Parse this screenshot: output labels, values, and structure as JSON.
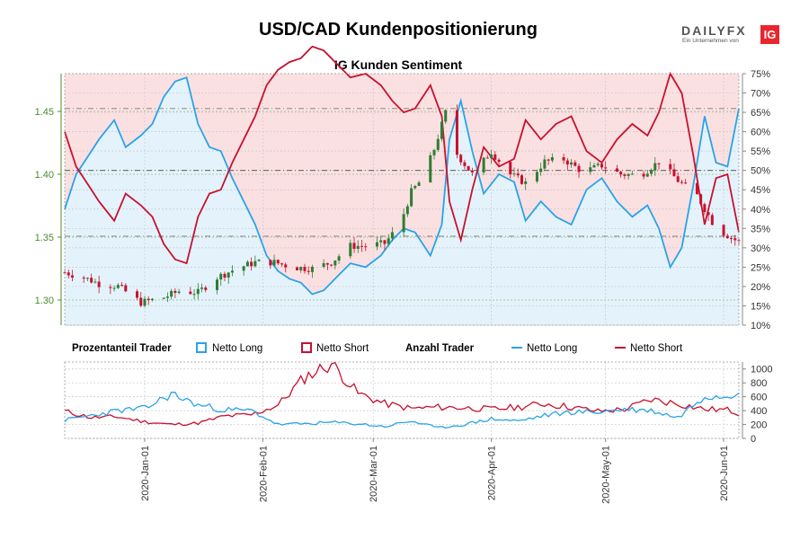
{
  "header": {
    "title": "USD/CAD Kundenpositionierung",
    "subtitle": "IG Kunden Sentiment"
  },
  "logo": {
    "brand_a": "DAILY",
    "brand_b": "FX",
    "tagline": "Ein Unternehmen von",
    "ig": "IG"
  },
  "colors": {
    "long": "#29a3e8",
    "short": "#c8102e",
    "candle_up": "#2e7d32",
    "candle_down": "#c8102e",
    "long_fill": "#e4f3fb",
    "short_fill": "#fbe0e2",
    "price_axis": "#4a8c2a"
  },
  "legend": {
    "pct_heading": "Prozentanteil Trader",
    "pct_long": "Netto Long",
    "pct_short": "Netto Short",
    "count_heading": "Anzahl Trader",
    "count_long": "Netto Long",
    "count_short": "Netto Short"
  },
  "chart_data": [
    {
      "type": "candlestick",
      "title": "IG Kunden Sentiment",
      "x_range": [
        "2019-12-11",
        "2020-06-05"
      ],
      "x_ticks": [
        "2020-Jan-01",
        "2020-Feb-01",
        "2020-Mar-01",
        "2020-Apr-01",
        "2020-May-01",
        "2020-Jun-01"
      ],
      "price_axis": {
        "side": "left",
        "ticks": [
          "1.30",
          "1.35",
          "1.40",
          "1.45"
        ],
        "ylim": [
          1.28,
          1.48
        ]
      },
      "percent_axis": {
        "side": "right",
        "ticks": [
          "10%",
          "15%",
          "20%",
          "25%",
          "30%",
          "35%",
          "40%",
          "45%",
          "50%",
          "55%",
          "60%",
          "65%",
          "70%",
          "75%"
        ],
        "ylim": [
          10,
          75
        ]
      },
      "reference_lines_percent": [
        33,
        50,
        66
      ],
      "grid": true,
      "series": [
        {
          "name": "Netto Long",
          "kind": "percent",
          "x": [
            "2019-12-11",
            "2019-12-14",
            "2019-12-18",
            "2019-12-20",
            "2019-12-24",
            "2019-12-27",
            "2019-12-31",
            "2020-01-03",
            "2020-01-06",
            "2020-01-09",
            "2020-01-12",
            "2020-01-15",
            "2020-01-18",
            "2020-01-21",
            "2020-01-24",
            "2020-01-27",
            "2020-01-30",
            "2020-02-02",
            "2020-02-05",
            "2020-02-08",
            "2020-02-11",
            "2020-02-14",
            "2020-02-17",
            "2020-02-20",
            "2020-02-24",
            "2020-02-28",
            "2020-03-03",
            "2020-03-06",
            "2020-03-09",
            "2020-03-12",
            "2020-03-16",
            "2020-03-19",
            "2020-03-21",
            "2020-03-24",
            "2020-03-27",
            "2020-03-30",
            "2020-04-03",
            "2020-04-07",
            "2020-04-10",
            "2020-04-14",
            "2020-04-18",
            "2020-04-22",
            "2020-04-26",
            "2020-04-30",
            "2020-05-04",
            "2020-05-08",
            "2020-05-12",
            "2020-05-15",
            "2020-05-18",
            "2020-05-21",
            "2020-05-24",
            "2020-05-27",
            "2020-05-30",
            "2020-06-02",
            "2020-06-05"
          ],
          "values": [
            40,
            49,
            55,
            58,
            63,
            56,
            59,
            62,
            69,
            73,
            74,
            62,
            56,
            55,
            48,
            42,
            36,
            28,
            24,
            22,
            21,
            18,
            19,
            22,
            26,
            25,
            28,
            32,
            35,
            34,
            28,
            36,
            58,
            68,
            55,
            44,
            49,
            47,
            37,
            42,
            38,
            36,
            45,
            48,
            42,
            38,
            41,
            35,
            25,
            30,
            46,
            64,
            52,
            51,
            66
          ]
        },
        {
          "name": "Netto Short",
          "kind": "percent",
          "values": [
            60,
            51,
            45,
            42,
            37,
            44,
            41,
            38,
            31,
            27,
            26,
            38,
            44,
            45,
            52,
            58,
            64,
            72,
            76,
            78,
            79,
            82,
            81,
            78,
            74,
            75,
            72,
            68,
            65,
            66,
            72,
            64,
            42,
            32,
            45,
            56,
            51,
            53,
            63,
            58,
            62,
            64,
            55,
            52,
            58,
            62,
            59,
            65,
            75,
            70,
            54,
            36,
            48,
            49,
            34
          ]
        },
        {
          "name": "USD/CAD",
          "kind": "price",
          "x": [
            "2019-12-11",
            "2019-12-16",
            "2019-12-20",
            "2019-12-25",
            "2019-12-31",
            "2020-01-06",
            "2020-01-10",
            "2020-01-15",
            "2020-01-20",
            "2020-01-25",
            "2020-01-30",
            "2020-02-04",
            "2020-02-09",
            "2020-02-14",
            "2020-02-19",
            "2020-02-24",
            "2020-02-28",
            "2020-03-04",
            "2020-03-08",
            "2020-03-11",
            "2020-03-14",
            "2020-03-17",
            "2020-03-20",
            "2020-03-23",
            "2020-03-27",
            "2020-04-01",
            "2020-04-06",
            "2020-04-10",
            "2020-04-15",
            "2020-04-20",
            "2020-04-25",
            "2020-04-30",
            "2020-05-05",
            "2020-05-10",
            "2020-05-15",
            "2020-05-20",
            "2020-05-25",
            "2020-05-30",
            "2020-06-05"
          ],
          "values": [
            1.322,
            1.318,
            1.313,
            1.311,
            1.298,
            1.302,
            1.307,
            1.306,
            1.318,
            1.325,
            1.33,
            1.33,
            1.326,
            1.325,
            1.33,
            1.343,
            1.343,
            1.345,
            1.36,
            1.386,
            1.397,
            1.42,
            1.449,
            1.416,
            1.4,
            1.418,
            1.4,
            1.393,
            1.41,
            1.412,
            1.402,
            1.407,
            1.4,
            1.399,
            1.41,
            1.395,
            1.383,
            1.357,
            1.346
          ]
        }
      ]
    },
    {
      "type": "line",
      "title": "Anzahl Trader",
      "yticks": [
        "0",
        "200",
        "400",
        "600",
        "800",
        "1000"
      ],
      "ylim": [
        0,
        1100
      ],
      "grid": true,
      "series": [
        {
          "name": "Netto Long",
          "x": [
            "2019-12-11",
            "2019-12-18",
            "2019-12-25",
            "2020-01-01",
            "2020-01-08",
            "2020-01-15",
            "2020-01-22",
            "2020-01-29",
            "2020-02-05",
            "2020-02-12",
            "2020-02-19",
            "2020-02-26",
            "2020-03-04",
            "2020-03-11",
            "2020-03-18",
            "2020-03-25",
            "2020-04-01",
            "2020-04-08",
            "2020-04-15",
            "2020-04-22",
            "2020-04-29",
            "2020-05-06",
            "2020-05-13",
            "2020-05-20",
            "2020-05-27",
            "2020-06-02",
            "2020-06-05"
          ],
          "values": [
            260,
            330,
            400,
            430,
            640,
            480,
            410,
            400,
            200,
            210,
            230,
            210,
            170,
            250,
            150,
            200,
            280,
            250,
            330,
            380,
            380,
            420,
            400,
            300,
            620,
            620,
            700
          ]
        },
        {
          "name": "Netto Short",
          "values": [
            390,
            300,
            310,
            240,
            200,
            220,
            320,
            340,
            480,
            880,
            1080,
            650,
            500,
            430,
            450,
            440,
            420,
            450,
            500,
            450,
            390,
            420,
            560,
            500,
            420,
            410,
            360
          ]
        }
      ]
    }
  ]
}
